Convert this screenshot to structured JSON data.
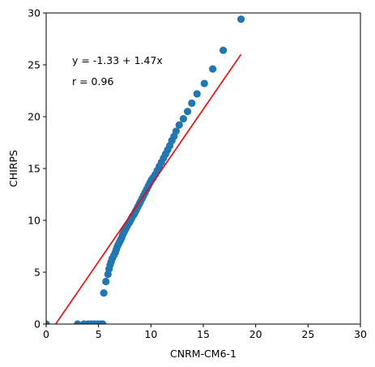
{
  "chart_data": {
    "type": "scatter",
    "xlabel": "CNRM-CM6-1",
    "ylabel": "CHIRPS",
    "xlim": [
      0,
      30
    ],
    "ylim": [
      0,
      30
    ],
    "xticks": [
      "0",
      "5",
      "10",
      "15",
      "20",
      "25",
      "30"
    ],
    "yticks": [
      "0",
      "5",
      "10",
      "15",
      "20",
      "25",
      "30"
    ],
    "grid": false,
    "annotations": [
      "y = -1.33 + 1.47x",
      "r = 0.96"
    ],
    "colors": {
      "points": "#1f77b4",
      "fit": "#ff0000"
    },
    "fit_line": {
      "intercept": -1.33,
      "slope": 1.47,
      "x_range": [
        0.9,
        18.6
      ]
    },
    "series": [
      {
        "marker": "circle",
        "points": [
          [
            0.0,
            0.0
          ],
          [
            3.0,
            0.0
          ],
          [
            3.6,
            0.0
          ],
          [
            4.0,
            0.0
          ],
          [
            4.3,
            0.0
          ],
          [
            4.6,
            0.0
          ],
          [
            4.9,
            0.0
          ],
          [
            5.2,
            0.0
          ],
          [
            5.4,
            0.0
          ],
          [
            5.5,
            3.0
          ],
          [
            5.7,
            4.1
          ],
          [
            5.9,
            4.8
          ],
          [
            6.0,
            5.3
          ],
          [
            6.1,
            5.7
          ],
          [
            6.2,
            6.0
          ],
          [
            6.3,
            6.3
          ],
          [
            6.45,
            6.6
          ],
          [
            6.6,
            6.9
          ],
          [
            6.7,
            7.2
          ],
          [
            6.8,
            7.5
          ],
          [
            6.9,
            7.7
          ],
          [
            7.0,
            7.9
          ],
          [
            7.1,
            8.1
          ],
          [
            7.2,
            8.3
          ],
          [
            7.3,
            8.6
          ],
          [
            7.4,
            8.8
          ],
          [
            7.5,
            9.0
          ],
          [
            7.6,
            9.2
          ],
          [
            7.7,
            9.4
          ],
          [
            7.8,
            9.6
          ],
          [
            7.95,
            9.8
          ],
          [
            8.05,
            10.0
          ],
          [
            8.15,
            10.2
          ],
          [
            8.25,
            10.4
          ],
          [
            8.4,
            10.6
          ],
          [
            8.5,
            10.8
          ],
          [
            8.6,
            11.0
          ],
          [
            8.75,
            11.3
          ],
          [
            8.9,
            11.6
          ],
          [
            9.0,
            11.8
          ],
          [
            9.15,
            12.1
          ],
          [
            9.3,
            12.4
          ],
          [
            9.45,
            12.7
          ],
          [
            9.6,
            13.0
          ],
          [
            9.75,
            13.3
          ],
          [
            9.9,
            13.6
          ],
          [
            10.05,
            13.9
          ],
          [
            10.2,
            14.1
          ],
          [
            10.4,
            14.4
          ],
          [
            10.6,
            14.8
          ],
          [
            10.8,
            15.2
          ],
          [
            11.0,
            15.6
          ],
          [
            11.2,
            16.0
          ],
          [
            11.4,
            16.4
          ],
          [
            11.6,
            16.8
          ],
          [
            11.8,
            17.2
          ],
          [
            12.0,
            17.7
          ],
          [
            12.2,
            18.1
          ],
          [
            12.4,
            18.6
          ],
          [
            12.7,
            19.2
          ],
          [
            13.1,
            19.8
          ],
          [
            13.5,
            20.5
          ],
          [
            13.9,
            21.3
          ],
          [
            14.4,
            22.2
          ],
          [
            15.1,
            23.2
          ],
          [
            15.9,
            24.6
          ],
          [
            16.9,
            26.4
          ],
          [
            18.6,
            29.4
          ]
        ]
      }
    ]
  }
}
